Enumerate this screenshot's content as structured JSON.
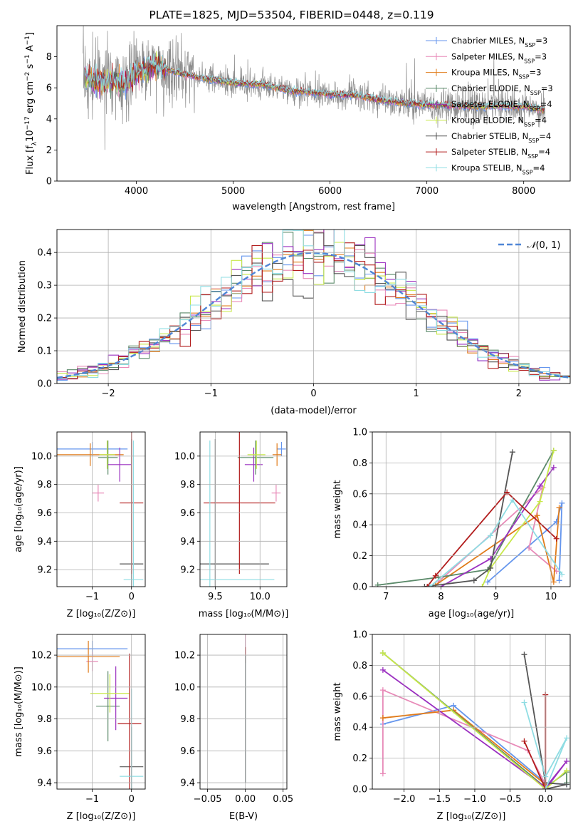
{
  "title": "PLATE=1825, MJD=53504, FIBERID=0448, z=0.119",
  "models": [
    {
      "name": "Chabrier MILES, N_SSP=3",
      "color": "#6495ed"
    },
    {
      "name": "Salpeter MILES, N_SSP=3",
      "color": "#e88ab8"
    },
    {
      "name": "Kroupa MILES, N_SSP=3",
      "color": "#e07b1a"
    },
    {
      "name": "Chabrier ELODIE, N_SSP=3",
      "color": "#5b8a6a"
    },
    {
      "name": "Salpeter ELODIE, N_SSP=4",
      "color": "#9b30c0"
    },
    {
      "name": "Kroupa ELODIE, N_SSP=4",
      "color": "#c8e84a"
    },
    {
      "name": "Chabrier STELIB, N_SSP=4",
      "color": "#555555"
    },
    {
      "name": "Salpeter STELIB, N_SSP=4",
      "color": "#b21d1d"
    },
    {
      "name": "Kroupa STELIB, N_SSP=4",
      "color": "#8fdde3"
    }
  ],
  "chart_data": [
    {
      "id": "spectrum",
      "type": "line",
      "xlabel": "wavelength [Angstrom, rest frame]",
      "ylabel": "Flux [f_λ 10^-17 erg cm^-2 s^-1 A^-1]",
      "xlim": [
        3180,
        8480
      ],
      "ylim": [
        0,
        10
      ],
      "xticks": [
        4000,
        5000,
        6000,
        7000,
        8000
      ],
      "yticks": [
        0,
        2,
        4,
        6,
        8
      ],
      "data_range": [
        3450,
        8220
      ],
      "continuum": [
        [
          3450,
          6.8
        ],
        [
          3550,
          6.4
        ],
        [
          3700,
          6.4
        ],
        [
          3900,
          6.3
        ],
        [
          4000,
          7.0
        ],
        [
          4200,
          7.4
        ],
        [
          4400,
          7.0
        ],
        [
          4700,
          6.6
        ],
        [
          5000,
          6.3
        ],
        [
          5300,
          6.2
        ],
        [
          5600,
          5.8
        ],
        [
          6000,
          5.6
        ],
        [
          6300,
          5.5
        ],
        [
          6600,
          5.1
        ],
        [
          7000,
          4.9
        ],
        [
          7500,
          4.8
        ],
        [
          8000,
          4.8
        ],
        [
          8220,
          4.6
        ]
      ],
      "series_names": [
        "data",
        "Chabrier MILES",
        "Salpeter MILES",
        "Kroupa MILES",
        "Chabrier ELODIE",
        "Salpeter ELODIE",
        "Kroupa ELODIE",
        "Chabrier STELIB",
        "Salpeter STELIB",
        "Kroupa STELIB"
      ]
    },
    {
      "id": "residuals",
      "type": "histogram",
      "xlabel": "(data-model)/error",
      "ylabel": "Normed distribution",
      "xlim": [
        -2.5,
        2.5
      ],
      "ylim": [
        0,
        0.47
      ],
      "xticks": [
        -2,
        -1,
        0,
        1,
        2
      ],
      "yticks": [
        0.0,
        0.1,
        0.2,
        0.3,
        0.4
      ],
      "bin_width": 0.1,
      "reference": {
        "name": "𝒩(0, 1)",
        "mu": 0,
        "sigma": 1
      },
      "legend_position": "top-right"
    },
    {
      "id": "age-vs-Z",
      "type": "errorbar",
      "xlabel": "Z [log10(Z/Z⊙)]",
      "ylabel": "age [log10(age/yr)]",
      "xlim": [
        -1.9,
        0.35
      ],
      "ylim": [
        9.08,
        10.17
      ],
      "xticks": [
        -1,
        0
      ],
      "yticks": [
        9.2,
        9.4,
        9.6,
        9.8,
        10.0
      ],
      "points": [
        {
          "model": 0,
          "x": -1.0,
          "xerr": 0.9,
          "y": 10.05,
          "yerr": 0.05
        },
        {
          "model": 1,
          "x": -0.85,
          "xerr": 0.15,
          "y": 9.74,
          "yerr": 0.06
        },
        {
          "model": 2,
          "x": -1.05,
          "xerr": 0.85,
          "y": 10.01,
          "yerr": 0.08
        },
        {
          "model": 3,
          "x": -0.6,
          "xerr": 0.25,
          "y": 9.99,
          "yerr": 0.12
        },
        {
          "model": 4,
          "x": -0.3,
          "xerr": 0.3,
          "y": 9.94,
          "yerr": 0.12
        },
        {
          "model": 5,
          "x": -0.62,
          "xerr": 0.2,
          "y": 10.01,
          "yerr": 0.1
        },
        {
          "model": 6,
          "x": 0.0,
          "xerr": 0.3,
          "y": 9.24,
          "yerr": 0.88
        },
        {
          "model": 7,
          "x": 0.0,
          "xerr": 0.3,
          "y": 9.67,
          "yerr": 0.5
        },
        {
          "model": 8,
          "x": 0.05,
          "xerr": 0.25,
          "y": 9.13,
          "yerr": 0.98
        }
      ]
    },
    {
      "id": "age-vs-mass",
      "type": "errorbar",
      "xlabel": "mass [log10(M/M⊙)]",
      "ylabel": "",
      "xlim": [
        9.33,
        10.3
      ],
      "ylim": [
        9.08,
        10.17
      ],
      "xticks": [
        9.5,
        10.0
      ],
      "yticks": [
        9.2,
        9.4,
        9.6,
        9.8,
        10.0
      ],
      "points": [
        {
          "model": 0,
          "x": 10.24,
          "xerr": 0.05,
          "y": 10.05,
          "yerr": 0.05
        },
        {
          "model": 1,
          "x": 10.18,
          "xerr": 0.05,
          "y": 9.74,
          "yerr": 0.06
        },
        {
          "model": 2,
          "x": 10.19,
          "xerr": 0.05,
          "y": 10.01,
          "yerr": 0.08
        },
        {
          "model": 3,
          "x": 9.95,
          "xerr": 0.2,
          "y": 9.99,
          "yerr": 0.12
        },
        {
          "model": 4,
          "x": 9.93,
          "xerr": 0.1,
          "y": 9.94,
          "yerr": 0.12
        },
        {
          "model": 5,
          "x": 9.96,
          "xerr": 0.1,
          "y": 10.01,
          "yerr": 0.1
        },
        {
          "model": 6,
          "x": 9.5,
          "xerr": 0.6,
          "y": 9.24,
          "yerr": 0.88
        },
        {
          "model": 7,
          "x": 9.77,
          "xerr": 0.4,
          "y": 9.67,
          "yerr": 0.5
        },
        {
          "model": 8,
          "x": 9.44,
          "xerr": 0.72,
          "y": 9.13,
          "yerr": 0.98
        }
      ]
    },
    {
      "id": "weight-vs-age",
      "type": "line",
      "xlabel": "age [log10(age/yr)]",
      "ylabel": "mass weight",
      "xlim": [
        6.75,
        10.35
      ],
      "ylim": [
        0,
        1.0
      ],
      "xticks": [
        7,
        8,
        9,
        10
      ],
      "yticks": [
        0.0,
        0.2,
        0.4,
        0.6,
        0.8,
        1.0
      ],
      "series": [
        {
          "model": 0,
          "x": [
            8.85,
            10.1,
            10.2,
            10.15
          ],
          "y": [
            0.03,
            0.42,
            0.54,
            0.04
          ]
        },
        {
          "model": 1,
          "x": [
            7.95,
            9.85,
            9.6,
            10.1
          ],
          "y": [
            0.03,
            0.64,
            0.25,
            0.1
          ]
        },
        {
          "model": 2,
          "x": [
            7.9,
            9.75,
            10.05,
            10.15
          ],
          "y": [
            0.01,
            0.46,
            0.03,
            0.51
          ]
        },
        {
          "model": 3,
          "x": [
            6.85,
            7.95,
            8.85,
            10.05
          ],
          "y": [
            0.01,
            0.06,
            0.11,
            0.88
          ]
        },
        {
          "model": 4,
          "x": [
            8.0,
            8.9,
            9.8,
            10.05
          ],
          "y": [
            0.0,
            0.18,
            0.65,
            0.77
          ]
        },
        {
          "model": 5,
          "x": [
            8.75,
            8.9,
            9.8,
            10.05
          ],
          "y": [
            0.0,
            0.12,
            0.55,
            0.88
          ]
        },
        {
          "model": 6,
          "x": [
            7.7,
            8.6,
            8.9,
            9.3
          ],
          "y": [
            0.0,
            0.04,
            0.12,
            0.87
          ]
        },
        {
          "model": 7,
          "x": [
            7.75,
            7.9,
            9.2,
            10.1
          ],
          "y": [
            0.0,
            0.07,
            0.61,
            0.31
          ]
        },
        {
          "model": 8,
          "x": [
            7.8,
            8.9,
            9.3,
            10.2
          ],
          "y": [
            0.0,
            0.33,
            0.56,
            0.08
          ]
        }
      ]
    },
    {
      "id": "mass-vs-Z",
      "type": "errorbar",
      "xlabel": "Z [log10(Z/Z⊙)]",
      "ylabel": "mass [log10(M/M⊙)]",
      "xlim": [
        -1.9,
        0.35
      ],
      "ylim": [
        9.36,
        10.33
      ],
      "xticks": [
        -1,
        0
      ],
      "yticks": [
        9.4,
        9.6,
        9.8,
        10.0,
        10.2
      ],
      "points": [
        {
          "model": 0,
          "x": -1.0,
          "xerr": 0.9,
          "y": 10.24,
          "yerr": 0.05
        },
        {
          "model": 1,
          "x": -1.0,
          "xerr": 0.15,
          "y": 10.16,
          "yerr": 0.06
        },
        {
          "model": 2,
          "x": -1.1,
          "xerr": 0.8,
          "y": 10.19,
          "yerr": 0.1
        },
        {
          "model": 3,
          "x": -0.6,
          "xerr": 0.3,
          "y": 9.88,
          "yerr": 0.22
        },
        {
          "model": 4,
          "x": -0.4,
          "xerr": 0.3,
          "y": 9.93,
          "yerr": 0.2
        },
        {
          "model": 5,
          "x": -0.55,
          "xerr": 0.5,
          "y": 9.96,
          "yerr": 0.12
        },
        {
          "model": 6,
          "x": 0.0,
          "xerr": 0.3,
          "y": 9.5,
          "yerr": 0.25
        },
        {
          "model": 7,
          "x": -0.05,
          "xerr": 0.3,
          "y": 9.77,
          "yerr": 0.44
        },
        {
          "model": 8,
          "x": 0.0,
          "xerr": 0.3,
          "y": 9.44,
          "yerr": 0.55
        }
      ]
    },
    {
      "id": "mass-vs-ebv",
      "type": "errorbar",
      "xlabel": "E(B-V)",
      "ylabel": "",
      "xlim": [
        -0.06,
        0.055
      ],
      "ylim": [
        9.36,
        10.33
      ],
      "xticks": [
        -0.05,
        0.0,
        0.05
      ],
      "yticks": [
        9.4,
        9.6,
        9.8,
        10.0,
        10.2
      ],
      "points": [
        {
          "model": 1,
          "x": 0.0,
          "xerr": 0.0,
          "y": 10.27,
          "yerr": 0.06
        },
        {
          "model": 7,
          "x": 0.0,
          "xerr": 0.0,
          "y": 10.2,
          "yerr": 0.05
        },
        {
          "model": 8,
          "x": 0.0,
          "xerr": 0.0,
          "y": 9.8,
          "yerr": 0.4
        },
        {
          "model": 6,
          "x": 0.0,
          "xerr": 0.0,
          "y": 9.8,
          "yerr": 0.4
        }
      ]
    },
    {
      "id": "weight-vs-Z",
      "type": "line",
      "xlabel": "Z [log10(Z/Z⊙)]",
      "ylabel": "mass weight",
      "xlim": [
        -2.45,
        0.35
      ],
      "ylim": [
        0,
        1.0
      ],
      "xticks": [
        -2.0,
        -1.5,
        -1.0,
        -0.5,
        0.0
      ],
      "yticks": [
        0.0,
        0.2,
        0.4,
        0.6,
        0.8,
        1.0
      ],
      "series": [
        {
          "model": 0,
          "x": [
            -2.3,
            -1.3,
            0.0,
            0.3
          ],
          "y": [
            0.42,
            0.54,
            0.04,
            0.03
          ]
        },
        {
          "model": 1,
          "x": [
            -2.3,
            -2.3,
            -0.25,
            0.0
          ],
          "y": [
            0.1,
            0.64,
            0.25,
            0.03
          ]
        },
        {
          "model": 2,
          "x": [
            -2.3,
            -1.3,
            0.0,
            0.0
          ],
          "y": [
            0.46,
            0.51,
            0.03,
            0.0
          ]
        },
        {
          "model": 3,
          "x": [
            -2.3,
            0.0,
            0.3,
            0.3
          ],
          "y": [
            0.88,
            0.01,
            0.11,
            0.04
          ]
        },
        {
          "model": 4,
          "x": [
            -2.3,
            0.0,
            0.3,
            0.0
          ],
          "y": [
            0.77,
            0.01,
            0.18,
            0.0
          ]
        },
        {
          "model": 5,
          "x": [
            -2.3,
            0.0,
            0.3,
            0.0
          ],
          "y": [
            0.88,
            0.0,
            0.12,
            0.0
          ]
        },
        {
          "model": 6,
          "x": [
            -0.3,
            0.0,
            0.3,
            0.0
          ],
          "y": [
            0.87,
            0.04,
            0.03,
            0.0
          ]
        },
        {
          "model": 7,
          "x": [
            0.0,
            0.0,
            -0.3,
            0.0
          ],
          "y": [
            0.61,
            0.0,
            0.31,
            0.0
          ]
        },
        {
          "model": 8,
          "x": [
            -0.3,
            0.0,
            0.3,
            0.0
          ],
          "y": [
            0.56,
            0.08,
            0.33,
            0.0
          ]
        }
      ]
    }
  ]
}
